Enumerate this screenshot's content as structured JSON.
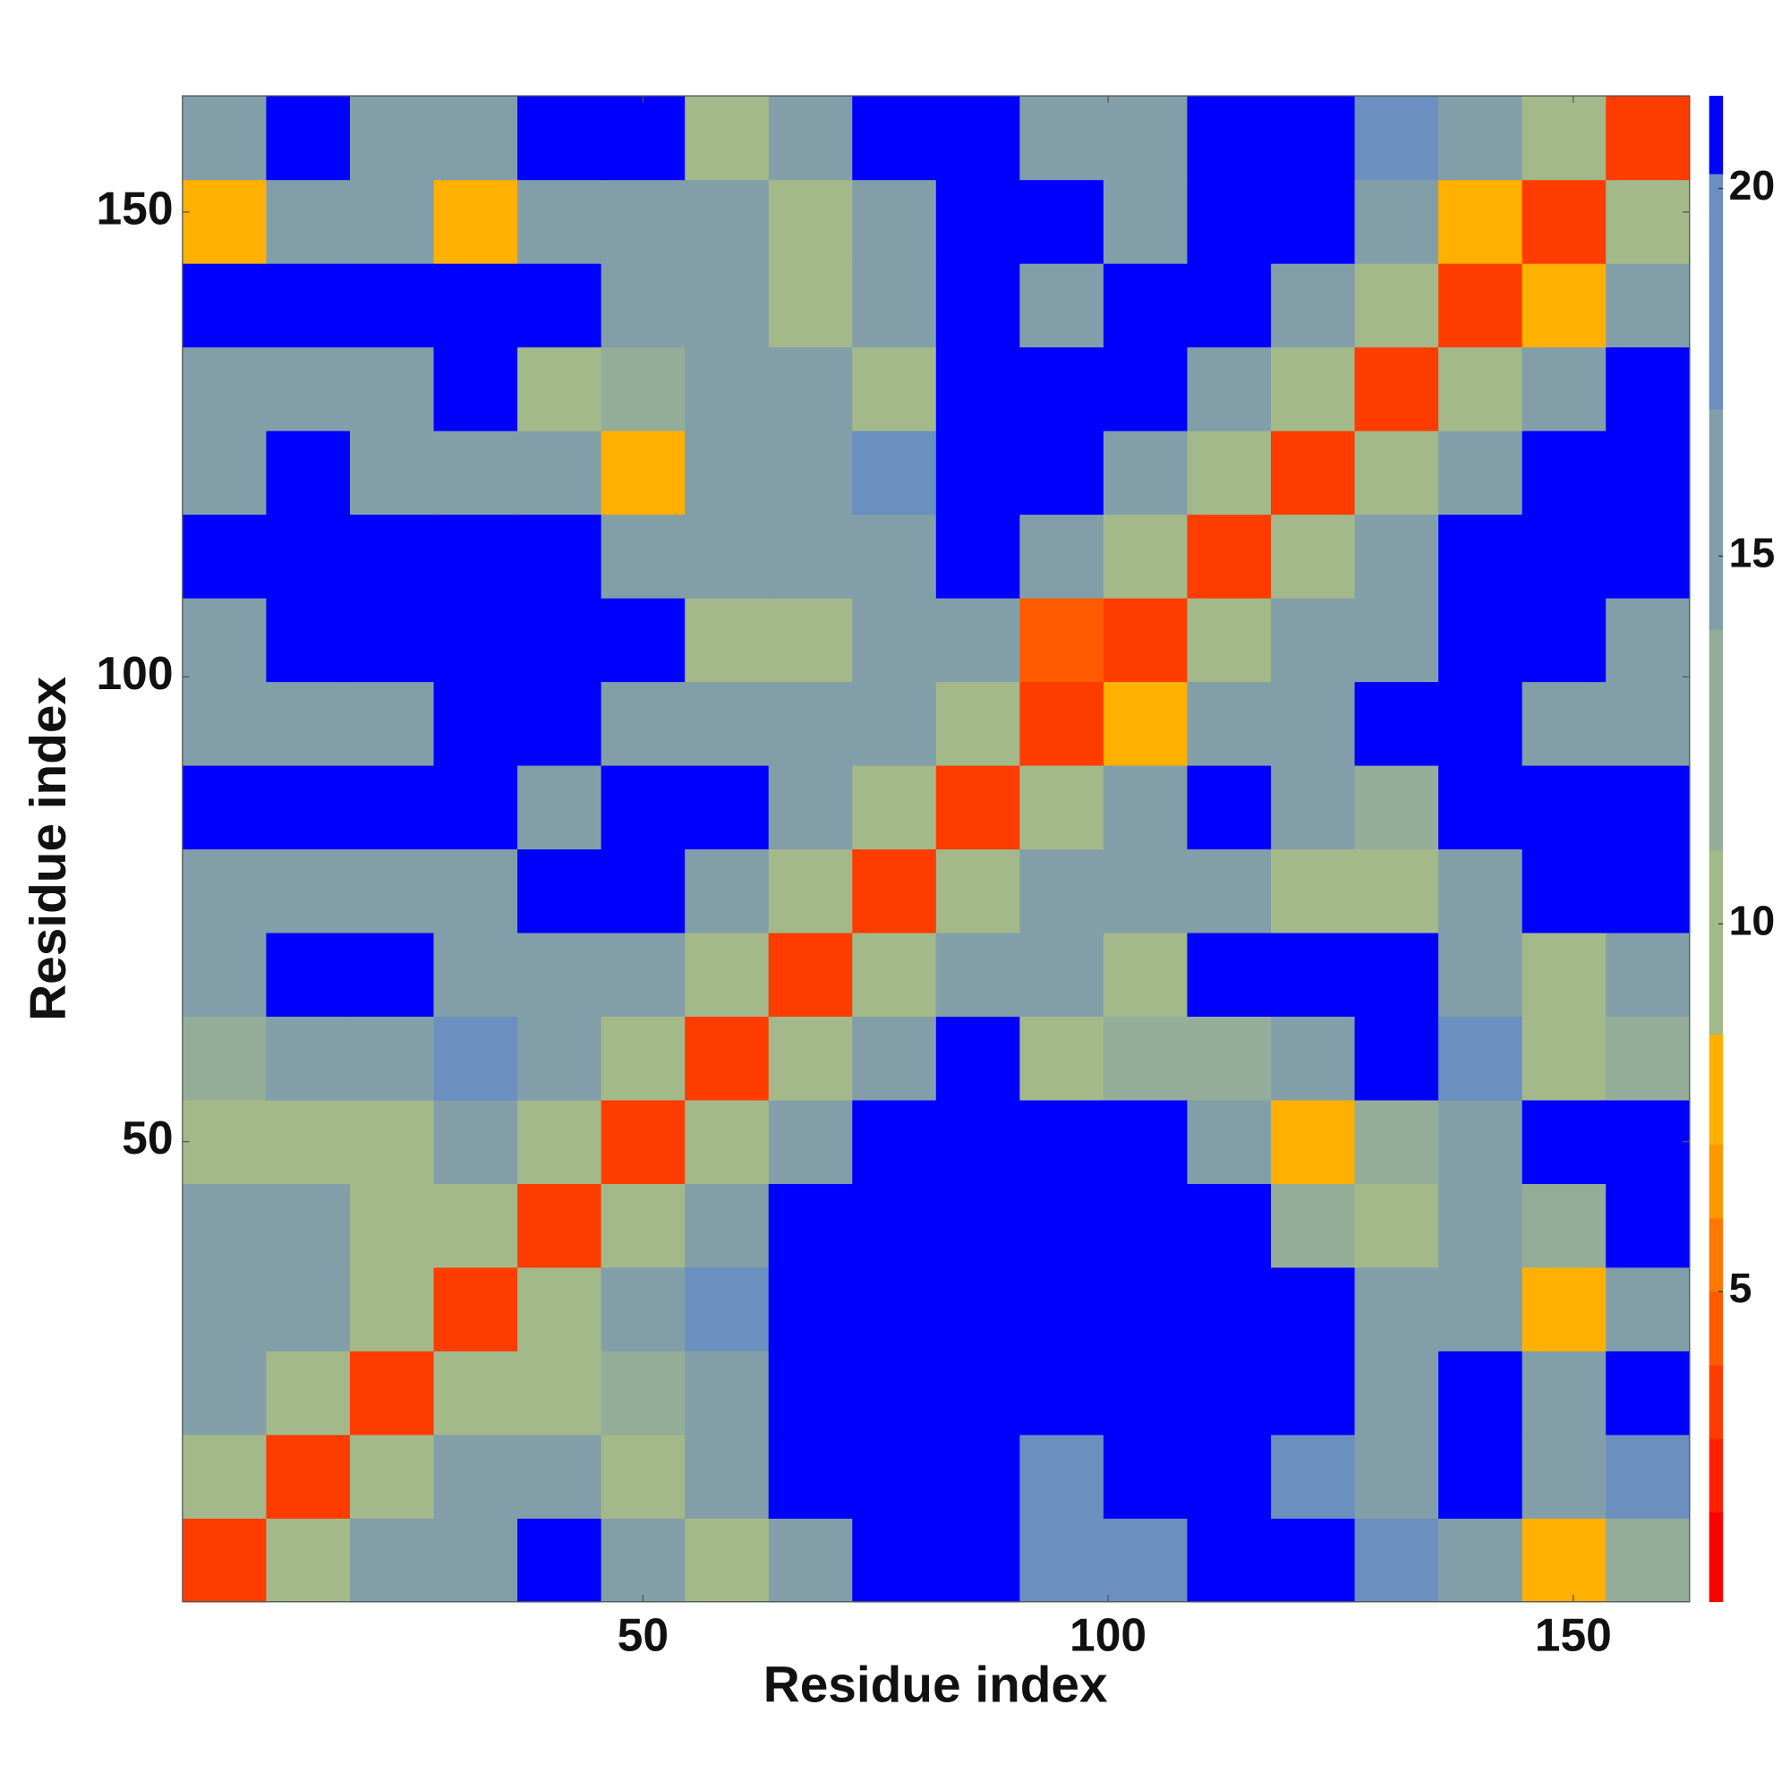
{
  "chart_data": {
    "type": "heatmap",
    "x_label": "Residue index",
    "y_label": "Residue index",
    "x": [
      5,
      14,
      23,
      32,
      41,
      50,
      59,
      68,
      77,
      86,
      95,
      104,
      113,
      122,
      131,
      140,
      149,
      158
    ],
    "y": [
      5,
      14,
      23,
      32,
      41,
      50,
      59,
      68,
      77,
      86,
      95,
      104,
      113,
      122,
      131,
      140,
      149,
      158
    ],
    "z": [
      [
        4,
        10,
        15,
        16,
        21,
        16,
        10,
        16,
        21,
        21,
        18,
        18,
        21,
        21,
        18,
        16,
        8,
        13
      ],
      [
        10,
        4,
        10,
        15,
        16,
        9,
        16,
        21,
        21,
        21,
        18,
        21,
        21,
        18,
        16,
        21,
        16,
        18
      ],
      [
        15,
        10,
        4,
        10,
        11,
        14,
        16,
        21,
        21,
        21,
        21,
        21,
        21,
        21,
        16,
        21,
        16,
        21
      ],
      [
        16,
        15,
        10,
        4,
        10,
        15,
        18,
        21,
        21,
        21,
        21,
        21,
        21,
        21,
        16,
        16,
        8,
        16
      ],
      [
        16,
        16,
        11,
        10,
        4,
        10,
        15,
        21,
        21,
        21,
        21,
        21,
        21,
        14,
        9,
        16,
        14,
        21
      ],
      [
        9,
        9,
        11,
        15,
        10,
        4,
        10,
        15,
        21,
        21,
        21,
        21,
        16,
        8,
        13,
        16,
        21,
        21
      ],
      [
        14,
        16,
        16,
        18,
        15,
        10,
        4,
        10,
        15,
        21,
        9,
        13,
        12,
        16,
        21,
        18,
        9,
        12
      ],
      [
        16,
        21,
        21,
        16,
        16,
        15,
        10,
        4,
        10,
        15,
        16,
        10,
        21,
        21,
        21,
        16,
        9,
        16
      ],
      [
        16,
        16,
        16,
        16,
        21,
        21,
        15,
        10,
        4,
        10,
        15,
        16,
        16,
        9,
        9,
        16,
        21,
        21
      ],
      [
        21,
        21,
        21,
        21,
        16,
        21,
        21,
        15,
        10,
        4,
        10,
        15,
        21,
        16,
        14,
        21,
        21,
        21
      ],
      [
        16,
        16,
        16,
        21,
        21,
        16,
        16,
        16,
        15,
        10,
        4,
        8,
        15,
        16,
        21,
        21,
        16,
        16
      ],
      [
        16,
        21,
        21,
        21,
        21,
        21,
        9,
        10,
        16,
        15,
        5,
        4,
        10,
        15,
        16,
        21,
        21,
        16
      ],
      [
        21,
        21,
        21,
        21,
        21,
        16,
        16,
        16,
        16,
        21,
        15,
        10,
        4,
        10,
        15,
        21,
        21,
        21
      ],
      [
        16,
        21,
        16,
        16,
        16,
        8,
        15,
        16,
        18,
        21,
        21,
        15,
        10,
        4,
        10,
        15,
        21,
        21
      ],
      [
        16,
        16,
        16,
        21,
        9,
        13,
        16,
        16,
        9,
        21,
        21,
        21,
        15,
        10,
        4,
        10,
        15,
        21
      ],
      [
        21,
        21,
        21,
        21,
        21,
        16,
        16,
        10,
        16,
        21,
        16,
        21,
        21,
        15,
        10,
        4,
        8,
        15
      ],
      [
        8,
        16,
        16,
        8,
        16,
        16,
        16,
        9,
        16,
        21,
        21,
        16,
        21,
        21,
        15,
        8,
        4,
        10
      ],
      [
        16,
        21,
        16,
        16,
        21,
        21,
        9,
        16,
        21,
        21,
        16,
        16,
        21,
        21,
        18,
        15,
        10,
        4
      ]
    ],
    "xlim": [
      0.5,
      162.5
    ],
    "ylim": [
      0.5,
      162.5
    ],
    "xticks": [
      50,
      100,
      150
    ],
    "yticks": [
      50,
      100,
      150
    ],
    "zlim": [
      0.78,
      21.26
    ],
    "zticks": [
      5,
      10,
      15,
      20
    ],
    "levels": [
      2,
      3,
      4,
      5,
      6,
      7,
      8.5,
      11,
      14,
      17,
      20.2
    ],
    "colors": [
      "#ff0000",
      "#ff2000",
      "#ff3c00",
      "#ff5a00",
      "#ff7800",
      "#ff9800",
      "#ffb000",
      "#a3b98a",
      "#94ad98",
      "#829fa9",
      "#6b8fbf",
      "#0000ff"
    ]
  }
}
